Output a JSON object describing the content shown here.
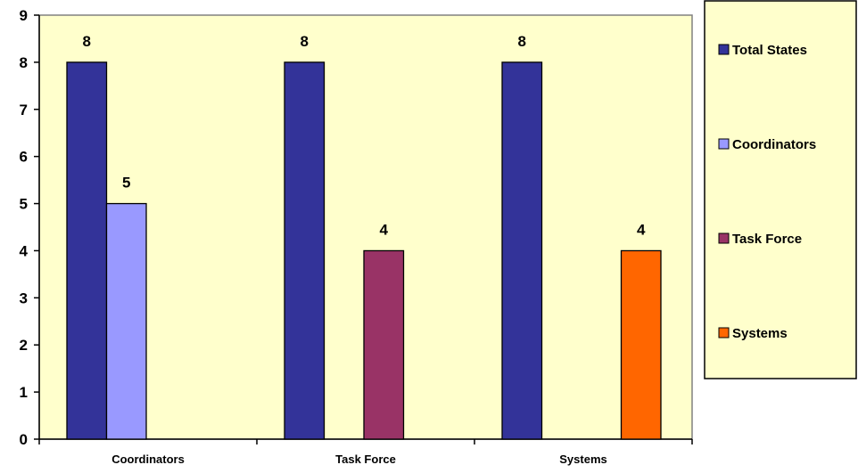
{
  "chart_data": {
    "type": "bar",
    "title": "",
    "xlabel": "",
    "ylabel": "",
    "categories": [
      "Coordinators",
      "Task Force",
      "Systems"
    ],
    "series": [
      {
        "name": "Total States",
        "color": "#333399",
        "values": [
          8,
          8,
          8
        ]
      },
      {
        "name": "Coordinators",
        "color": "#9999FF",
        "values": [
          5,
          null,
          null
        ]
      },
      {
        "name": "Task Force",
        "color": "#993366",
        "values": [
          null,
          4,
          null
        ]
      },
      {
        "name": "Systems",
        "color": "#FF6600",
        "values": [
          null,
          null,
          4
        ]
      }
    ],
    "ylim": [
      0,
      9
    ],
    "yticks": [
      "0",
      "1",
      "2",
      "3",
      "4",
      "5",
      "6",
      "7",
      "8",
      "9"
    ],
    "data_labels": true,
    "grid": false,
    "legend_position": "right",
    "plot_background": "#FFFFCC"
  }
}
